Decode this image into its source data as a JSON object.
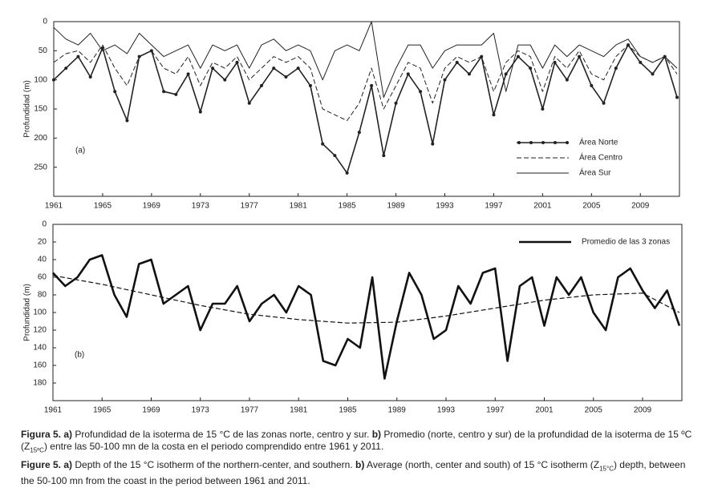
{
  "chart_data": [
    {
      "type": "line",
      "ylabel": "Profundidad (m)",
      "annotation": "(a)",
      "invert_y": true,
      "legend": "lower right",
      "xlim": [
        1961,
        2012.2
      ],
      "xticks": [
        1961,
        1965,
        1969,
        1973,
        1977,
        1981,
        1985,
        1989,
        1993,
        1997,
        2001,
        2005,
        2009
      ],
      "ylim": [
        0,
        300
      ],
      "yticks": [
        0,
        50,
        100,
        150,
        200,
        250
      ],
      "x": [
        1961,
        1962,
        1963,
        1964,
        1965,
        1966,
        1967,
        1968,
        1969,
        1970,
        1971,
        1972,
        1973,
        1974,
        1975,
        1976,
        1977,
        1978,
        1979,
        1980,
        1981,
        1982,
        1983,
        1984,
        1985,
        1986,
        1987,
        1988,
        1989,
        1990,
        1991,
        1992,
        1993,
        1994,
        1995,
        1996,
        1997,
        1998,
        1999,
        2000,
        2001,
        2002,
        2003,
        2004,
        2005,
        2006,
        2007,
        2008,
        2009,
        2010,
        2011,
        2012
      ],
      "series": [
        {
          "name": "Área Norte",
          "color": "#222222",
          "marker": "circle",
          "dash": "solid",
          "width": 1.6,
          "values": [
            100,
            80,
            60,
            95,
            45,
            120,
            170,
            60,
            50,
            120,
            125,
            90,
            155,
            80,
            100,
            70,
            140,
            110,
            80,
            95,
            80,
            110,
            210,
            230,
            260,
            190,
            110,
            230,
            140,
            90,
            120,
            210,
            100,
            70,
            90,
            60,
            160,
            90,
            60,
            80,
            150,
            70,
            100,
            60,
            110,
            140,
            80,
            40,
            70,
            90,
            60,
            130
          ]
        },
        {
          "name": "Área Centro",
          "color": "#222222",
          "dash": "dashed",
          "width": 1,
          "values": [
            70,
            55,
            50,
            70,
            40,
            80,
            110,
            60,
            50,
            80,
            90,
            60,
            110,
            70,
            80,
            60,
            100,
            80,
            60,
            70,
            60,
            80,
            150,
            160,
            170,
            140,
            80,
            150,
            110,
            70,
            80,
            140,
            80,
            60,
            70,
            60,
            120,
            70,
            50,
            60,
            120,
            60,
            80,
            50,
            90,
            100,
            60,
            40,
            60,
            70,
            60,
            90
          ]
        },
        {
          "name": "Área Sur",
          "color": "#222222",
          "dash": "solid",
          "width": 1,
          "values": [
            10,
            30,
            40,
            20,
            50,
            40,
            55,
            20,
            40,
            60,
            50,
            40,
            80,
            40,
            50,
            40,
            80,
            40,
            30,
            50,
            40,
            50,
            100,
            50,
            40,
            50,
            0,
            130,
            80,
            40,
            40,
            80,
            50,
            40,
            40,
            40,
            20,
            120,
            40,
            40,
            80,
            40,
            60,
            40,
            50,
            60,
            40,
            30,
            60,
            70,
            60,
            80
          ]
        }
      ]
    },
    {
      "type": "line",
      "ylabel": "Profundidad (m)",
      "annotation": "(b)",
      "invert_y": true,
      "legend": "upper right",
      "xlim": [
        1961,
        2012.2
      ],
      "xticks": [
        1961,
        1965,
        1969,
        1973,
        1977,
        1981,
        1985,
        1989,
        1993,
        1997,
        2001,
        2005,
        2009
      ],
      "ylim": [
        0,
        200
      ],
      "yticks": [
        0,
        20,
        40,
        60,
        80,
        100,
        120,
        140,
        160,
        180
      ],
      "x": [
        1961,
        1962,
        1963,
        1964,
        1965,
        1966,
        1967,
        1968,
        1969,
        1970,
        1971,
        1972,
        1973,
        1974,
        1975,
        1976,
        1977,
        1978,
        1979,
        1980,
        1981,
        1982,
        1983,
        1984,
        1985,
        1986,
        1987,
        1988,
        1989,
        1990,
        1991,
        1992,
        1993,
        1994,
        1995,
        1996,
        1997,
        1998,
        1999,
        2000,
        2001,
        2002,
        2003,
        2004,
        2005,
        2006,
        2007,
        2008,
        2009,
        2010,
        2011,
        2012
      ],
      "series": [
        {
          "name": "Promedio de las 3 zonas",
          "color": "#111111",
          "dash": "solid",
          "width": 2.6,
          "values": [
            55,
            70,
            60,
            40,
            35,
            80,
            105,
            45,
            40,
            90,
            80,
            70,
            120,
            90,
            90,
            70,
            110,
            90,
            80,
            100,
            70,
            80,
            155,
            160,
            130,
            140,
            60,
            175,
            110,
            55,
            80,
            130,
            120,
            70,
            90,
            55,
            50,
            155,
            70,
            60,
            115,
            60,
            80,
            60,
            100,
            120,
            60,
            50,
            75,
            95,
            75,
            115
          ]
        },
        {
          "color": "#111111",
          "dash": "dashed",
          "width": 1.2,
          "x": [
            1961,
            1965,
            1969,
            1973,
            1977,
            1981,
            1985,
            1989,
            1993,
            1997,
            2001,
            2005,
            2009,
            2012
          ],
          "values": [
            58,
            68,
            80,
            92,
            102,
            108,
            112,
            111,
            104,
            95,
            86,
            80,
            78,
            100
          ]
        }
      ]
    }
  ],
  "caption": {
    "es": [
      "Figura 5. a)",
      " Profundidad de la isoterma de 15 °C de las zonas norte, centro y sur. ",
      "b)",
      " Promedio (norte, centro y sur) de la profundidad de la isoterma de 15 ºC (Z",
      "15ºC",
      ") entre las 50-100 mn de la costa en el periodo comprendido entre 1961 y 2011."
    ],
    "en": [
      "Figure 5. a)",
      " Depth of the 15 °C isotherm of the northern-center, and southern. ",
      "b)",
      " Average (north, center and south) of 15 °C isotherm (Z",
      "15°C",
      ") depth, between the 50-100 mn from the coast in the period between 1961 and 2011."
    ]
  }
}
